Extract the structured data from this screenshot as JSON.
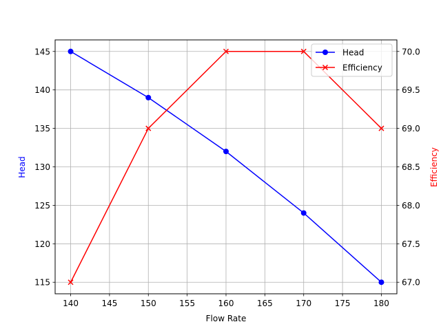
{
  "chart_data": {
    "type": "line",
    "title": "",
    "xlabel": "Flow Rate",
    "ylabel": "Head",
    "ylabel_right": "Efficiency",
    "x": [
      140,
      150,
      160,
      170,
      180
    ],
    "xlim": [
      138,
      182
    ],
    "ylim": [
      113.5,
      146.5
    ],
    "ylim_right": [
      66.85,
      70.15
    ],
    "x_ticks": [
      "140",
      "145",
      "150",
      "155",
      "160",
      "165",
      "170",
      "175",
      "180"
    ],
    "y_ticks": [
      "115",
      "120",
      "125",
      "130",
      "135",
      "140",
      "145"
    ],
    "y_ticks_right": [
      "67.0",
      "67.5",
      "68.0",
      "68.5",
      "69.0",
      "69.5",
      "70.0"
    ],
    "grid": true,
    "legend_position": "upper right",
    "series": [
      {
        "name": "Head",
        "axis": "left",
        "color": "#0000ff",
        "marker": "circle",
        "values": [
          145,
          139,
          132,
          124,
          115
        ]
      },
      {
        "name": "Efficiency",
        "axis": "right",
        "color": "#ff0000",
        "marker": "x",
        "values": [
          67.0,
          69.0,
          70.0,
          70.0,
          69.0
        ]
      }
    ]
  }
}
